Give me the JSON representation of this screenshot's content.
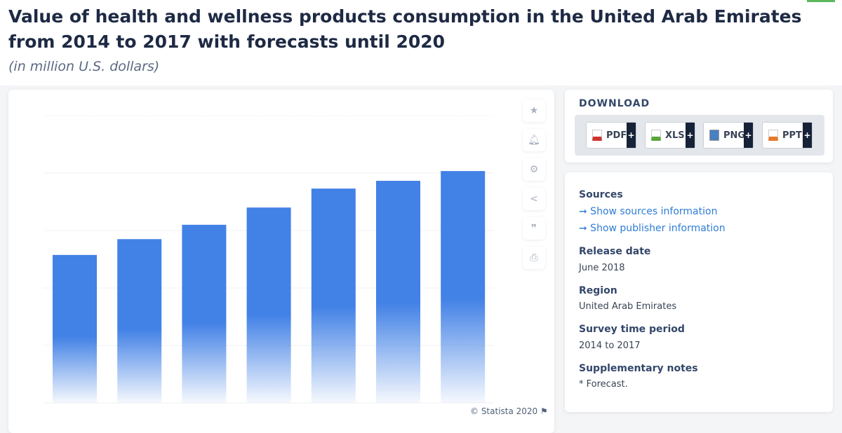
{
  "header": {
    "title": "Value of health and wellness products consumption in the United Arab Emirates from 2014 to 2017 with forecasts until 2020",
    "subtitle": "(in million U.S. dollars)"
  },
  "chart_data": {
    "type": "bar",
    "note_values_relative": "values estimated as relative heights; axis labels not legible",
    "values": [
      51.5,
      57,
      62,
      68,
      74.6,
      77.3,
      80.7
    ],
    "ylim": [
      0,
      100
    ],
    "grid": true,
    "bar_color": "#4281e6"
  },
  "toolbar": {
    "icons": [
      "star-icon",
      "bell-icon",
      "gear-icon",
      "share-icon",
      "quote-icon",
      "print-icon"
    ]
  },
  "credit": "© Statista 2020",
  "download": {
    "title": "DOWNLOAD",
    "formats": [
      {
        "label": "PDF",
        "color": "#d0342c"
      },
      {
        "label": "XLS",
        "color": "#5aa53a"
      },
      {
        "label": "PNG",
        "color": "#4a7fc1"
      },
      {
        "label": "PPT",
        "color": "#e8792b"
      }
    ],
    "plus": "+"
  },
  "info": {
    "sources_label": "Sources",
    "show_sources": "➞ Show sources information",
    "show_publisher": "➞ Show publisher information",
    "release_label": "Release date",
    "release": "June 2018",
    "region_label": "Region",
    "region": "United Arab Emirates",
    "period_label": "Survey time period",
    "period": "2014 to 2017",
    "notes_label": "Supplementary notes",
    "notes": "* Forecast."
  }
}
